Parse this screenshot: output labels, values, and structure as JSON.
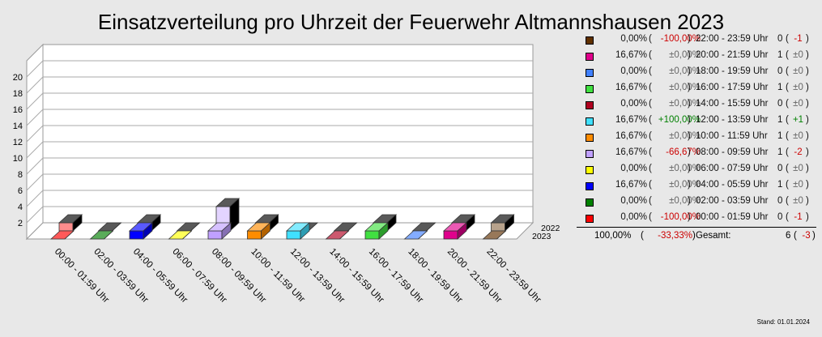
{
  "chart_data": {
    "type": "bar",
    "title": "Einsatzverteilung pro Uhrzeit der Feuerwehr Altmannshausen 2023",
    "categories": [
      "00:00 - 01:59 Uhr",
      "02:00 - 03:59 Uhr",
      "04:00 - 05:59 Uhr",
      "06:00 - 07:59 Uhr",
      "08:00 - 09:59 Uhr",
      "10:00 - 11:59 Uhr",
      "12:00 - 13:59 Uhr",
      "14:00 - 15:59 Uhr",
      "16:00 - 17:59 Uhr",
      "18:00 - 19:59 Uhr",
      "20:00 - 21:59 Uhr",
      "22:00 - 23:59 Uhr"
    ],
    "colors": [
      "#ff0000",
      "#008000",
      "#0000ff",
      "#ffff00",
      "#c0a0ff",
      "#ff8c00",
      "#40e0ff",
      "#b00020",
      "#40e040",
      "#4080ff",
      "#e0008c",
      "#603000"
    ],
    "series": [
      {
        "name": "2023",
        "values": [
          0,
          0,
          1,
          0,
          1,
          1,
          1,
          0,
          1,
          0,
          1,
          0
        ]
      },
      {
        "name": "2022",
        "values": [
          1,
          0,
          1,
          0,
          3,
          1,
          0,
          0,
          1,
          0,
          1,
          1
        ]
      }
    ],
    "yticks": [
      "2",
      "4",
      "6",
      "8",
      "10",
      "12",
      "14",
      "16",
      "18",
      "20"
    ],
    "ylim": [
      0,
      20
    ]
  },
  "legend": [
    {
      "color": "#603000",
      "percent": "0,00%",
      "change": "-100,00%",
      "dir": "neg",
      "range": "22:00 - 23:59 Uhr",
      "count": "0",
      "delta": "-1"
    },
    {
      "color": "#e0008c",
      "percent": "16,67%",
      "change": "±0,00%",
      "dir": "zero",
      "range": "20:00 - 21:59 Uhr",
      "count": "1",
      "delta": "±0"
    },
    {
      "color": "#4080ff",
      "percent": "0,00%",
      "change": "±0,00%",
      "dir": "zero",
      "range": "18:00 - 19:59 Uhr",
      "count": "0",
      "delta": "±0"
    },
    {
      "color": "#40e040",
      "percent": "16,67%",
      "change": "±0,00%",
      "dir": "zero",
      "range": "16:00 - 17:59 Uhr",
      "count": "1",
      "delta": "±0"
    },
    {
      "color": "#b00020",
      "percent": "0,00%",
      "change": "±0,00%",
      "dir": "zero",
      "range": "14:00 - 15:59 Uhr",
      "count": "0",
      "delta": "±0"
    },
    {
      "color": "#40e0ff",
      "percent": "16,67%",
      "change": "+100,00%",
      "dir": "pos",
      "range": "12:00 - 13:59 Uhr",
      "count": "1",
      "delta": "+1"
    },
    {
      "color": "#ff8c00",
      "percent": "16,67%",
      "change": "±0,00%",
      "dir": "zero",
      "range": "10:00 - 11:59 Uhr",
      "count": "1",
      "delta": "±0"
    },
    {
      "color": "#c0a0ff",
      "percent": "16,67%",
      "change": "-66,67%",
      "dir": "neg",
      "range": "08:00 - 09:59 Uhr",
      "count": "1",
      "delta": "-2"
    },
    {
      "color": "#ffff00",
      "percent": "0,00%",
      "change": "±0,00%",
      "dir": "zero",
      "range": "06:00 - 07:59 Uhr",
      "count": "0",
      "delta": "±0"
    },
    {
      "color": "#0000ff",
      "percent": "16,67%",
      "change": "±0,00%",
      "dir": "zero",
      "range": "04:00 - 05:59 Uhr",
      "count": "1",
      "delta": "±0"
    },
    {
      "color": "#008000",
      "percent": "0,00%",
      "change": "±0,00%",
      "dir": "zero",
      "range": "02:00 - 03:59 Uhr",
      "count": "0",
      "delta": "±0"
    },
    {
      "color": "#ff0000",
      "percent": "0,00%",
      "change": "-100,00%",
      "dir": "neg",
      "range": "00:00 - 01:59 Uhr",
      "count": "0",
      "delta": "-1"
    }
  ],
  "total": {
    "percent": "100,00%",
    "change": "-33,33%",
    "label": "Gesamt:",
    "count": "6",
    "delta": "-3"
  },
  "stand": "Stand: 01.01.2024"
}
